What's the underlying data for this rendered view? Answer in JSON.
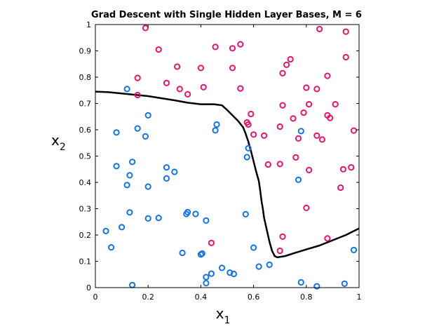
{
  "chart_data": {
    "type": "scatter",
    "title": "Grad Descent with Single Hidden Layer Bases, M = 6",
    "xlabel": "x",
    "xlabel_sub": "1",
    "ylabel": "x",
    "ylabel_sub": "2",
    "xlim": [
      0,
      1
    ],
    "ylim": [
      0,
      1
    ],
    "xticks": [
      "0",
      "0.2",
      "0.4",
      "0.6",
      "0.8",
      "1"
    ],
    "yticks": [
      "0",
      "0.1",
      "0.2",
      "0.3",
      "0.4",
      "0.5",
      "0.6",
      "0.7",
      "0.8",
      "0.9",
      "1"
    ],
    "grid": false,
    "series": [
      {
        "color": "#1473e6",
        "marker": "circle-open",
        "points": [
          [
            0.12,
            0.755
          ],
          [
            0.08,
            0.59
          ],
          [
            0.16,
            0.605
          ],
          [
            0.19,
            0.575
          ],
          [
            0.2,
            0.655
          ],
          [
            0.08,
            0.462
          ],
          [
            0.14,
            0.478
          ],
          [
            0.13,
            0.427
          ],
          [
            0.12,
            0.39
          ],
          [
            0.2,
            0.384
          ],
          [
            0.27,
            0.457
          ],
          [
            0.3,
            0.44
          ],
          [
            0.27,
            0.415
          ],
          [
            0.13,
            0.286
          ],
          [
            0.04,
            0.215
          ],
          [
            0.1,
            0.23
          ],
          [
            0.06,
            0.153
          ],
          [
            0.2,
            0.263
          ],
          [
            0.24,
            0.265
          ],
          [
            0.35,
            0.287
          ],
          [
            0.345,
            0.28
          ],
          [
            0.38,
            0.28
          ],
          [
            0.42,
            0.255
          ],
          [
            0.33,
            0.132
          ],
          [
            0.4,
            0.126
          ],
          [
            0.405,
            0.13
          ],
          [
            0.14,
            0.01
          ],
          [
            0.42,
            0.04
          ],
          [
            0.42,
            0.017
          ],
          [
            0.44,
            0.053
          ],
          [
            0.48,
            0.075
          ],
          [
            0.51,
            0.057
          ],
          [
            0.525,
            0.052
          ],
          [
            0.6,
            0.152
          ],
          [
            0.62,
            0.08
          ],
          [
            0.66,
            0.087
          ],
          [
            0.46,
            0.62
          ],
          [
            0.455,
            0.598
          ],
          [
            0.58,
            0.53
          ],
          [
            0.575,
            0.496
          ],
          [
            0.57,
            0.279
          ],
          [
            0.77,
            0.41
          ],
          [
            0.78,
            0.595
          ],
          [
            0.78,
            0.02
          ],
          [
            0.84,
            0.005
          ],
          [
            0.945,
            0.015
          ],
          [
            0.98,
            0.143
          ]
        ]
      },
      {
        "color": "#e6146e",
        "marker": "circle-open",
        "points": [
          [
            0.19,
            0.987
          ],
          [
            0.16,
            0.797
          ],
          [
            0.16,
            0.732
          ],
          [
            0.24,
            0.905
          ],
          [
            0.27,
            0.778
          ],
          [
            0.31,
            0.84
          ],
          [
            0.32,
            0.755
          ],
          [
            0.35,
            0.735
          ],
          [
            0.4,
            0.835
          ],
          [
            0.41,
            0.762
          ],
          [
            0.455,
            0.915
          ],
          [
            0.52,
            0.91
          ],
          [
            0.55,
            0.925
          ],
          [
            0.52,
            0.835
          ],
          [
            0.55,
            0.757
          ],
          [
            0.575,
            0.628
          ],
          [
            0.58,
            0.62
          ],
          [
            0.59,
            0.66
          ],
          [
            0.6,
            0.582
          ],
          [
            0.64,
            0.578
          ],
          [
            0.655,
            0.468
          ],
          [
            0.7,
            0.47
          ],
          [
            0.7,
            0.612
          ],
          [
            0.71,
            0.815
          ],
          [
            0.725,
            0.847
          ],
          [
            0.74,
            0.868
          ],
          [
            0.71,
            0.693
          ],
          [
            0.75,
            0.643
          ],
          [
            0.77,
            0.567
          ],
          [
            0.76,
            0.495
          ],
          [
            0.79,
            0.665
          ],
          [
            0.8,
            0.76
          ],
          [
            0.81,
            0.697
          ],
          [
            0.81,
            0.447
          ],
          [
            0.84,
            0.755
          ],
          [
            0.84,
            0.578
          ],
          [
            0.86,
            0.563
          ],
          [
            0.85,
            0.983
          ],
          [
            0.88,
            0.805
          ],
          [
            0.88,
            0.655
          ],
          [
            0.89,
            0.645
          ],
          [
            0.91,
            0.697
          ],
          [
            0.93,
            0.38
          ],
          [
            0.94,
            0.45
          ],
          [
            0.95,
            0.973
          ],
          [
            0.95,
            0.876
          ],
          [
            0.97,
            0.457
          ],
          [
            0.98,
            0.597
          ],
          [
            0.71,
            0.194
          ],
          [
            0.7,
            0.14
          ],
          [
            0.8,
            0.303
          ],
          [
            0.88,
            0.187
          ],
          [
            0.44,
            0.17
          ]
        ]
      }
    ],
    "boundary": {
      "color": "#000000",
      "points": [
        [
          0,
          0.745
        ],
        [
          0.05,
          0.743
        ],
        [
          0.1,
          0.738
        ],
        [
          0.15,
          0.733
        ],
        [
          0.2,
          0.728
        ],
        [
          0.25,
          0.72
        ],
        [
          0.3,
          0.712
        ],
        [
          0.35,
          0.703
        ],
        [
          0.4,
          0.697
        ],
        [
          0.45,
          0.697
        ],
        [
          0.48,
          0.693
        ],
        [
          0.5,
          0.675
        ],
        [
          0.52,
          0.655
        ],
        [
          0.54,
          0.635
        ],
        [
          0.56,
          0.61
        ],
        [
          0.57,
          0.585
        ],
        [
          0.58,
          0.555
        ],
        [
          0.59,
          0.52
        ],
        [
          0.6,
          0.48
        ],
        [
          0.61,
          0.44
        ],
        [
          0.62,
          0.405
        ],
        [
          0.625,
          0.37
        ],
        [
          0.63,
          0.33
        ],
        [
          0.635,
          0.3
        ],
        [
          0.64,
          0.265
        ],
        [
          0.65,
          0.22
        ],
        [
          0.66,
          0.175
        ],
        [
          0.67,
          0.14
        ],
        [
          0.68,
          0.12
        ],
        [
          0.69,
          0.115
        ],
        [
          0.72,
          0.12
        ],
        [
          0.75,
          0.13
        ],
        [
          0.8,
          0.145
        ],
        [
          0.85,
          0.16
        ],
        [
          0.9,
          0.18
        ],
        [
          0.95,
          0.2
        ],
        [
          1.0,
          0.225
        ]
      ]
    }
  }
}
